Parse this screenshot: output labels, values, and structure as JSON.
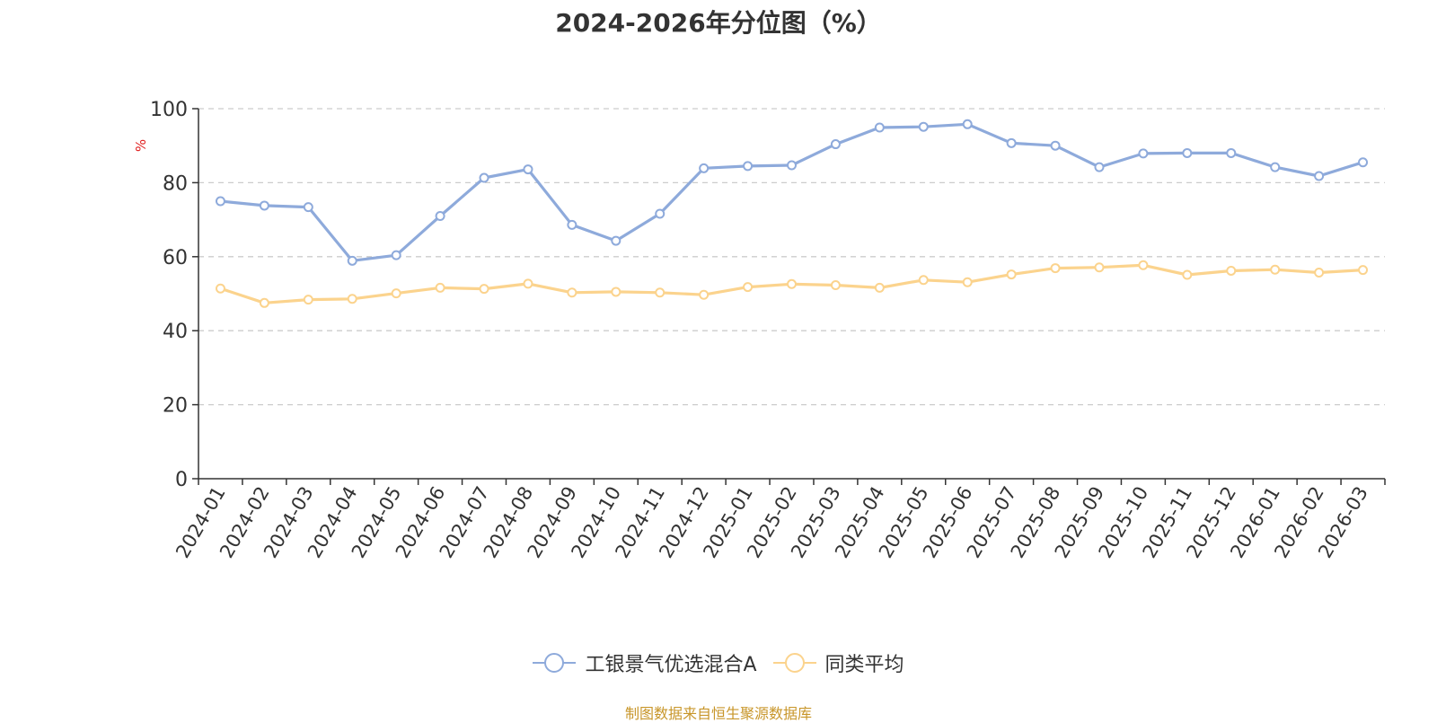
{
  "chart_data": {
    "type": "line",
    "title": "2024-2026年分位图（%）",
    "ylabel": "%",
    "xlabel": "",
    "ylim": [
      0,
      100
    ],
    "yticks": [
      0,
      20,
      40,
      60,
      80,
      100
    ],
    "grid": true,
    "legend_position": "bottom",
    "categories": [
      "2024-01",
      "2024-02",
      "2024-03",
      "2024-04",
      "2024-05",
      "2024-06",
      "2024-07",
      "2024-08",
      "2024-09",
      "2024-10",
      "2024-11",
      "2024-12",
      "2025-01",
      "2025-02",
      "2025-03",
      "2025-04",
      "2025-05",
      "2025-06",
      "2025-07",
      "2025-08",
      "2025-09",
      "2025-10",
      "2025-11",
      "2025-12",
      "2026-01",
      "2026-02",
      "2026-03"
    ],
    "series": [
      {
        "name": "工银景气优选混合A",
        "color": "#8eaadb",
        "values": [
          75.0,
          73.8,
          73.4,
          58.9,
          60.4,
          71.0,
          81.3,
          83.6,
          68.6,
          64.3,
          71.6,
          83.9,
          84.5,
          84.7,
          90.4,
          94.9,
          95.1,
          95.8,
          90.7,
          90.0,
          84.2,
          87.9,
          88.0,
          88.0,
          84.2,
          81.8,
          85.5
        ]
      },
      {
        "name": "同类平均",
        "color": "#fbd38d",
        "values": [
          51.4,
          47.5,
          48.4,
          48.6,
          50.1,
          51.6,
          51.3,
          52.7,
          50.3,
          50.5,
          50.3,
          49.7,
          51.8,
          52.6,
          52.3,
          51.6,
          53.7,
          53.1,
          55.2,
          56.9,
          57.1,
          57.7,
          55.1,
          56.2,
          56.5,
          55.7,
          56.4
        ]
      }
    ]
  },
  "source_note": "制图数据来自恒生聚源数据库"
}
